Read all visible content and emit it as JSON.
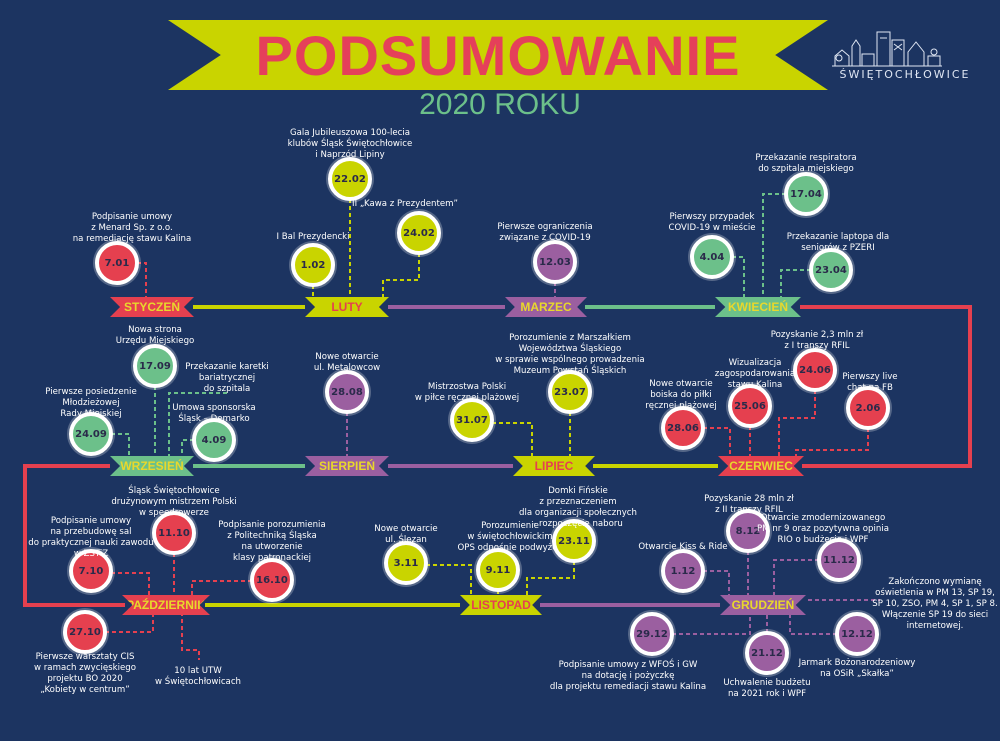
{
  "header": {
    "title": "PODSUMOWANIE",
    "subtitle": "2020 ROKU",
    "logo_text": "ŚWIĘTOCHŁOWICE"
  },
  "colors": {
    "background": "#1c3461",
    "lime": "#c9d400",
    "red": "#e5404f",
    "purple": "#9b5fa0",
    "green": "#6cc08a",
    "month_text_yellow": "#e8d82c"
  },
  "months": [
    {
      "name": "STYCZEŃ",
      "color": "red",
      "events": [
        {
          "date": "7.01",
          "label": "Podpisanie umowy\nz Menard Sp. z o.o.\nna remediację stawu Kalina"
        }
      ]
    },
    {
      "name": "LUTY",
      "color": "lime",
      "events": [
        {
          "date": "1.02",
          "label": "I Bal Prezydencki"
        },
        {
          "date": "22.02",
          "label": "Gala Jubileuszowa 100-lecia\nklubów Śląsk Świętochłowice\ni Naprzód Lipiny"
        },
        {
          "date": "24.02",
          "label": "II „Kawa z Prezydentem”"
        }
      ]
    },
    {
      "name": "MARZEC",
      "color": "purple",
      "events": [
        {
          "date": "12.03",
          "label": "Pierwsze ograniczenia\nzwiązane z COVID-19"
        }
      ]
    },
    {
      "name": "KWIECIEŃ",
      "color": "green",
      "events": [
        {
          "date": "4.04",
          "label": "Pierwszy przypadek\nCOVID-19 w mieście"
        },
        {
          "date": "17.04",
          "label": "Przekazanie respiratora\ndo szpitala miejskiego"
        },
        {
          "date": "23.04",
          "label": "Przekazanie laptopa dla\nseniorów z PZERI"
        }
      ]
    },
    {
      "name": "CZERWIEC",
      "color": "red",
      "events": [
        {
          "date": "28.06",
          "label": "Nowe otwarcie\nboiska do piłki\nręcznej plażowej"
        },
        {
          "date": "25.06",
          "label": "Wizualizacja\nzagospodarowania\nstawu Kalina"
        },
        {
          "date": "24.06",
          "label": "Pozyskanie 2,3 mln zł\nz I transzy RFIL"
        },
        {
          "date": "2.06",
          "label": "Pierwszy live\nchat na FB"
        }
      ]
    },
    {
      "name": "LIPIEC",
      "color": "lime",
      "events": [
        {
          "date": "31.07",
          "label": "Mistrzostwa Polski\nw piłce ręcznej plażowej"
        },
        {
          "date": "23.07",
          "label": "Porozumienie z Marszałkiem\nWojewództwa Śląskiego\nw sprawie wspólnego prowadzenia\nMuzeum Powstań Śląskich"
        }
      ]
    },
    {
      "name": "SIERPIEŃ",
      "color": "purple",
      "events": [
        {
          "date": "28.08",
          "label": "Nowe otwarcie\nul. Metalowcow"
        }
      ]
    },
    {
      "name": "WRZESIEŃ",
      "color": "green",
      "events": [
        {
          "date": "17.09",
          "label": "Nowa strona\nUrzędu Miejskiego"
        },
        {
          "date": "24.09",
          "label": "Pierwsze posiedzenie\nMłodzieżowej\nRady Miejskiej"
        },
        {
          "date": null,
          "label": "Przekazanie karetki\nbariatrycznej\ndo szpitala"
        },
        {
          "date": "4.09",
          "label": "Umowa sponsorska\nŚląsk – Demarko"
        }
      ]
    },
    {
      "name": "PAŹDZIERNIK",
      "color": "red",
      "events": [
        {
          "date": "11.10",
          "label": "Śląsk Świętochłowice\ndrużynowym mistrzem Polski\nw speedrowerze"
        },
        {
          "date": "7.10",
          "label": "Podpisanie umowy\nna przebudowę sal\ndo praktycznej nauki zawodu\nw ZSTiZ"
        },
        {
          "date": "16.10",
          "label": "Podpisanie porozumienia\nz Politechniką Śląska\nna utworzenie\nklasy patronackiej"
        },
        {
          "date": "27.10",
          "label": "Pierwsze warsztaty CIS\nw ramach zwycięskiego\nprojektu BO 2020\n„Kobiety w centrum”"
        },
        {
          "date": null,
          "label": "10 lat UTW\nw Świętochłowicach"
        }
      ]
    },
    {
      "name": "LISTOPAD",
      "color": "lime",
      "events": [
        {
          "date": "3.11",
          "label": "Nowe otwarcie\nul. Ślęzan"
        },
        {
          "date": "9.11",
          "label": "Porozumienie\nw świętochłowickim\nOPS odnośnie podwyżek"
        },
        {
          "date": "23.11",
          "label": "Domki Fińskie\nz przeznaczeniem\ndla organizacji społecznych\n- rozpoczęcie naboru"
        }
      ]
    },
    {
      "name": "GRUDZIEŃ",
      "color": "purple",
      "events": [
        {
          "date": "8.12",
          "label": "Pozyskanie 28 mln zł\nz II transzy RFIL"
        },
        {
          "date": "1.12",
          "label": "Otwarcie Kiss & Ride"
        },
        {
          "date": "11.12",
          "label": "Otwarcie zmodernizowanego\nPM nr 9 oraz pozytywna opinia\nRIO o budżecie i WPF"
        },
        {
          "date": null,
          "label": "Zakończono wymianę\noświetlenia w PM 13, SP 19,\nSP 10, ZSO, PM 4, SP 1, SP 8.\nWłączenie SP 19 do sieci\ninternetowej."
        },
        {
          "date": "29.12",
          "label": "Podpisanie umowy z WFOŚ i GW\nna dotację i pożyczkę\ndla projektu remediacji stawu Kalina"
        },
        {
          "date": "21.12",
          "label": "Uchwalenie budżetu\nna 2021 rok i WPF"
        },
        {
          "date": "12.12",
          "label": "Jarmark Bożonarodzeniowy\nna OSiR „Skałka”"
        }
      ]
    }
  ]
}
